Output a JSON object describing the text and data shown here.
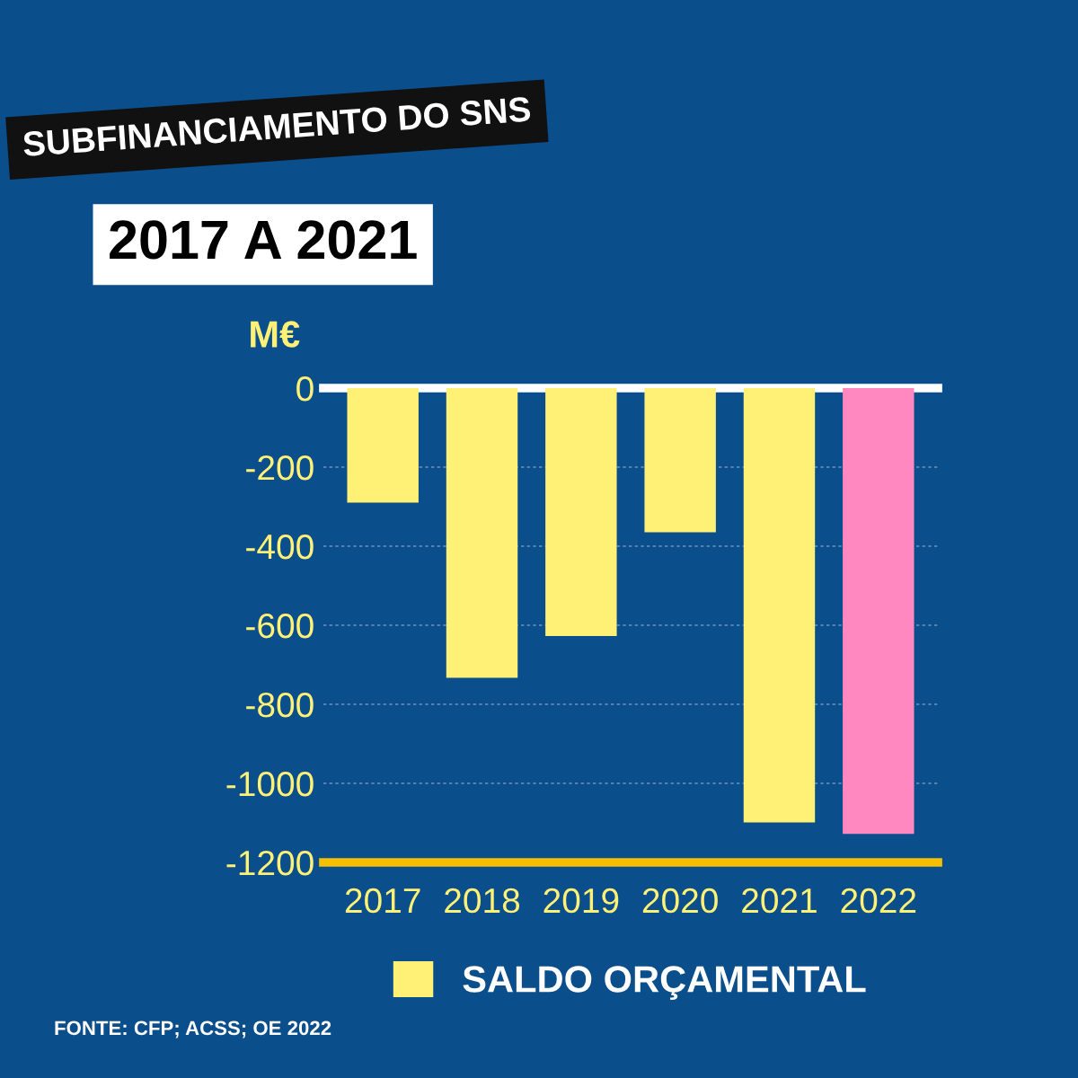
{
  "chart_data": {
    "type": "bar",
    "title": "SUBFINANCIAMENTO DO SNS",
    "subtitle": "2017 A 2021",
    "ylabel": "M€",
    "categories": [
      "2017",
      "2018",
      "2019",
      "2020",
      "2021",
      "2022"
    ],
    "series": [
      {
        "name": "SALDO ORÇAMENTAL",
        "color": "#fff176",
        "colors": [
          "#fff176",
          "#fff176",
          "#fff176",
          "#fff176",
          "#fff176",
          "#ff88c0"
        ],
        "values": [
          -290,
          -733,
          -627,
          -365,
          -1099,
          -1128
        ]
      }
    ],
    "ylim": [
      -1200,
      0
    ],
    "yticks": [
      0,
      -200,
      -400,
      -600,
      -800,
      -1000,
      -1200
    ],
    "grid": "y",
    "legend": "bottom",
    "annotations": [
      "FONTE: CFP; ACSS; OE 2022"
    ]
  }
}
